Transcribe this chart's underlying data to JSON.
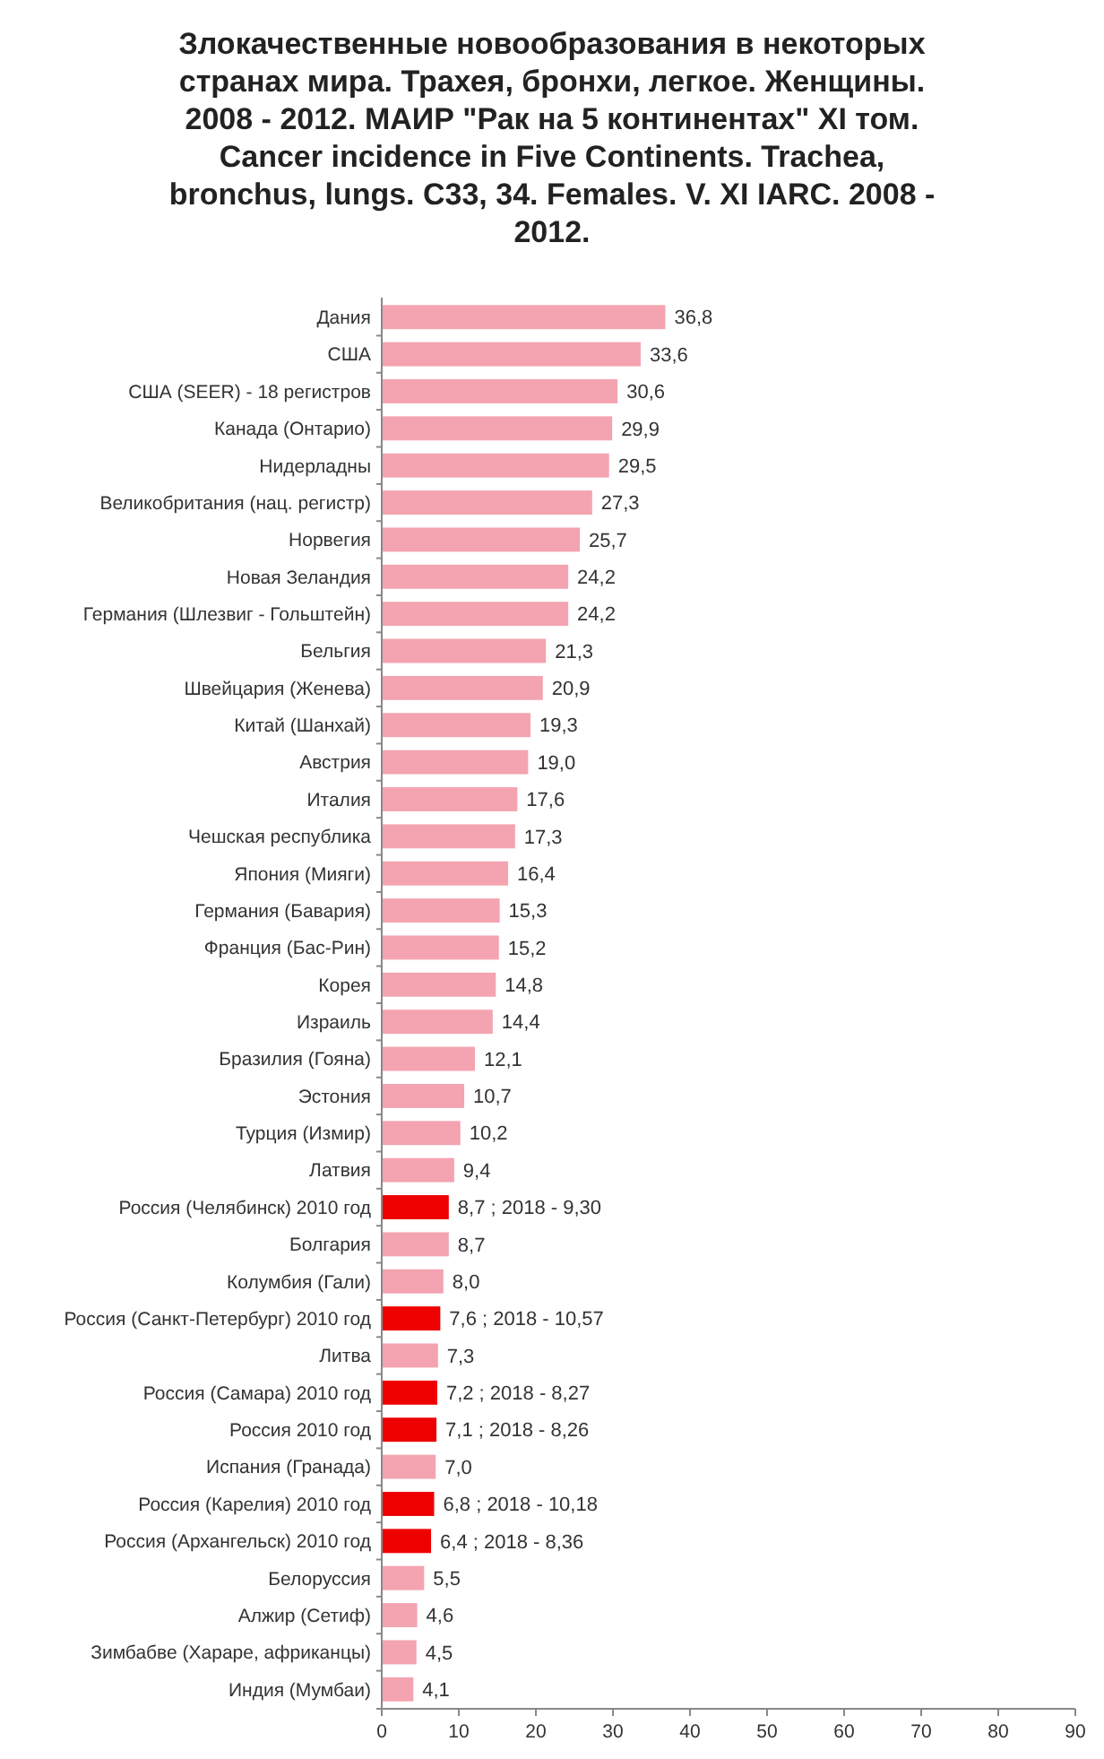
{
  "chart_data": {
    "type": "bar",
    "orientation": "horizontal",
    "title": "Злокачественные новообразования в некоторых странах мира. Трахея, бронхи, легкое. Женщины. 2008 - 2012. МАИР \"Рак на 5 континентах\" XI том. Cancer incidence in Five Continents. Trachea, bronchus, lungs. C33, 34. Females. V. XI IARC. 2008 - 2012.",
    "categories": [
      "Дания",
      "США",
      "США (SEER) - 18 регистров",
      "Канада (Онтарио)",
      "Нидерладны",
      "Великобритания (нац. регистр)",
      "Норвегия",
      "Новая Зеландия",
      "Германия (Шлезвиг - Гольштейн)",
      "Бельгия",
      "Швейцария (Женева)",
      "Китай (Шанхай)",
      "Австрия",
      "Италия",
      "Чешская республика",
      "Япония (Мияги)",
      "Германия (Бавария)",
      "Франция (Бас-Рин)",
      "Корея",
      "Израиль",
      "Бразилия (Гояна)",
      "Эстония",
      "Турция (Измир)",
      "Латвия",
      "Россия (Челябинск) 2010 год",
      "Болгария",
      "Колумбия (Гали)",
      "Россия (Санкт-Петербург) 2010 год",
      "Литва",
      "Россия (Самара) 2010 год",
      "Россия 2010 год",
      "Испания (Гранада)",
      "Россия (Карелия) 2010 год",
      "Россия (Архангельск) 2010 год",
      "Белоруссия",
      "Алжир (Сетиф)",
      "Зимбабве (Хараре, африканцы)",
      "Индия (Мумбаи)"
    ],
    "values": [
      36.8,
      33.6,
      30.6,
      29.9,
      29.5,
      27.3,
      25.7,
      24.2,
      24.2,
      21.3,
      20.9,
      19.3,
      19.0,
      17.6,
      17.3,
      16.4,
      15.3,
      15.2,
      14.8,
      14.4,
      12.1,
      10.7,
      10.2,
      9.4,
      8.7,
      8.7,
      8.0,
      7.6,
      7.3,
      7.2,
      7.1,
      7.0,
      6.8,
      6.4,
      5.5,
      4.6,
      4.5,
      4.1
    ],
    "value_labels": [
      "36,8",
      "33,6",
      "30,6",
      "29,9",
      "29,5",
      "27,3",
      "25,7",
      "24,2",
      "24,2",
      "21,3",
      "20,9",
      "19,3",
      "19,0",
      "17,6",
      "17,3",
      "16,4",
      "15,3",
      "15,2",
      "14,8",
      "14,4",
      "12,1",
      "10,7",
      "10,2",
      "9,4",
      "8,7 ; 2018 - 9,30",
      "8,7",
      "8,0",
      "7,6 ; 2018 - 10,57",
      "7,3",
      "7,2 ; 2018 - 8,27",
      "7,1 ; 2018 - 8,26",
      "7,0",
      "6,8 ; 2018 - 10,18",
      "6,4 ; 2018 - 8,36",
      "5,5",
      "4,6",
      "4,5",
      "4,1"
    ],
    "colors": [
      "#f4a3b1",
      "#f4a3b1",
      "#f4a3b1",
      "#f4a3b1",
      "#f4a3b1",
      "#f4a3b1",
      "#f4a3b1",
      "#f4a3b1",
      "#f4a3b1",
      "#f4a3b1",
      "#f4a3b1",
      "#f4a3b1",
      "#f4a3b1",
      "#f4a3b1",
      "#f4a3b1",
      "#f4a3b1",
      "#f4a3b1",
      "#f4a3b1",
      "#f4a3b1",
      "#f4a3b1",
      "#f4a3b1",
      "#f4a3b1",
      "#f4a3b1",
      "#f4a3b1",
      "#ee0000",
      "#f4a3b1",
      "#f4a3b1",
      "#ee0000",
      "#f4a3b1",
      "#ee0000",
      "#ee0000",
      "#f4a3b1",
      "#ee0000",
      "#ee0000",
      "#f4a3b1",
      "#f4a3b1",
      "#f4a3b1",
      "#f4a3b1"
    ],
    "xlim": [
      0,
      90
    ],
    "xticks": [
      0,
      10,
      20,
      30,
      40,
      50,
      60,
      70,
      80,
      90
    ],
    "grid": false
  }
}
